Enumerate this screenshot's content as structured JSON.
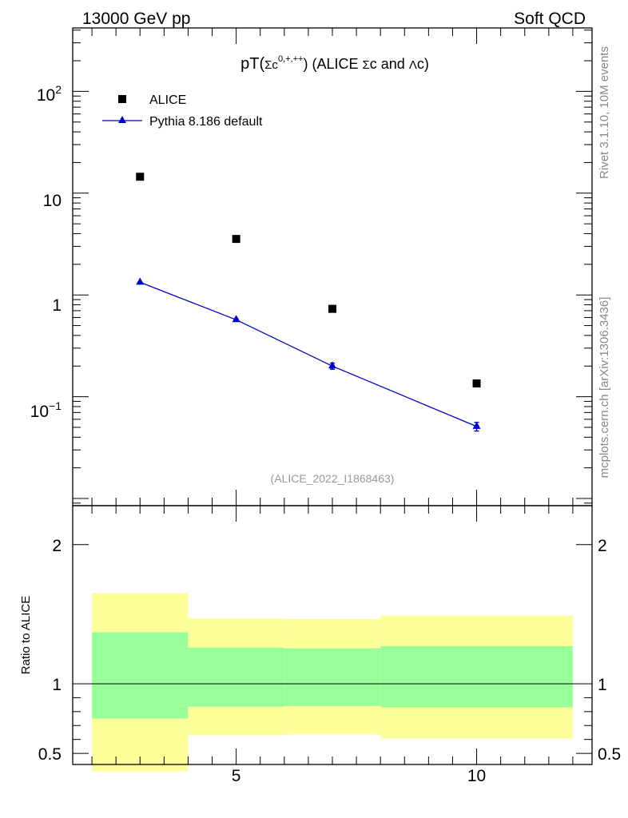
{
  "header": {
    "left": "13000 GeV pp",
    "right": "Soft QCD"
  },
  "side_text": {
    "rivet": "Rivet 3.1.10,  10M events",
    "mcplots": "mcplots.cern.ch [arXiv:1306.3436]"
  },
  "watermark": "(ALICE_2022_I1868463)",
  "title": {
    "prefix": "pT(",
    "sigma": "Σc",
    "sup": "0,+,++",
    "close": ")",
    "mid": " (ALICE ",
    "sigma2": "Σ",
    "c_and": "c and ",
    "lambda": "Λ",
    "end": "c)"
  },
  "legend": {
    "data": "ALICE",
    "mc": "Pythia 8.186 default"
  },
  "colors": {
    "mc": "#0000cc",
    "band_inner": "#99ff99",
    "band_outer": "#ffff99",
    "data": "#000000"
  },
  "main_ticks": {
    "y": [
      "10",
      "1",
      "10",
      "10",
      "−1",
      "2"
    ]
  },
  "ratio_ylabel": "Ratio to ALICE",
  "chart_data": [
    {
      "type": "scatter",
      "title": "pT(Σc 0,+,++) (ALICE Σc and Λc)",
      "xlabel": "",
      "ylabel": "",
      "xlim": [
        1.6,
        12.4
      ],
      "ylim": [
        0.0085,
        420
      ],
      "yscale": "log",
      "series": [
        {
          "name": "ALICE",
          "marker": "square",
          "x": [
            3,
            5,
            7,
            10
          ],
          "y": [
            14.5,
            3.55,
            0.73,
            0.135
          ]
        },
        {
          "name": "Pythia 8.186 default",
          "marker": "triangle",
          "line": true,
          "x": [
            3,
            5,
            7,
            10
          ],
          "y": [
            1.33,
            0.57,
            0.2,
            0.051
          ],
          "yerr": [
            0.02,
            0.012,
            0.014,
            0.005
          ]
        }
      ],
      "yticks": [
        "10^-1",
        "1",
        "10",
        "10^2"
      ],
      "xticks": []
    },
    {
      "type": "area",
      "title": "",
      "xlabel": "",
      "ylabel": "Ratio to ALICE",
      "xlim": [
        1.6,
        12.4
      ],
      "ylim": [
        0.42,
        2.28
      ],
      "bins": [
        {
          "x0": 2,
          "x1": 4,
          "inner": [
            0.75,
            1.37
          ],
          "outer": [
            0.37,
            1.65
          ]
        },
        {
          "x0": 4,
          "x1": 6,
          "inner": [
            0.835,
            1.26
          ],
          "outer": [
            0.63,
            1.47
          ]
        },
        {
          "x0": 6,
          "x1": 8,
          "inner": [
            0.84,
            1.255
          ],
          "outer": [
            0.635,
            1.465
          ]
        },
        {
          "x0": 8,
          "x1": 12,
          "inner": [
            0.83,
            1.27
          ],
          "outer": [
            0.605,
            1.49
          ]
        }
      ],
      "reference_line": 1,
      "yticks": [
        "0.5",
        "1",
        "2"
      ],
      "xticks": [
        "5",
        "10"
      ]
    }
  ]
}
